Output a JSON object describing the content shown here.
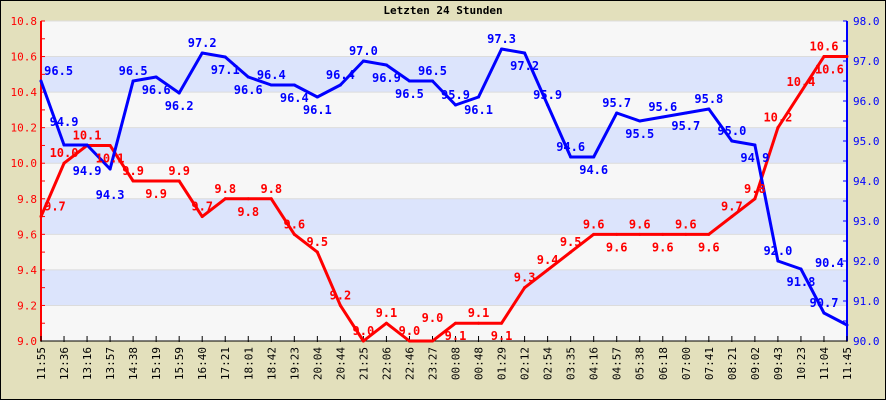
{
  "chart_data": {
    "type": "line",
    "title": "Letzten 24 Stunden",
    "categories": [
      "11:55",
      "12:36",
      "13:16",
      "13:57",
      "14:38",
      "15:19",
      "15:59",
      "16:40",
      "17:21",
      "18:01",
      "18:42",
      "19:23",
      "20:04",
      "20:44",
      "21:25",
      "22:06",
      "22:46",
      "23:27",
      "00:08",
      "00:48",
      "01:29",
      "02:12",
      "02:54",
      "03:35",
      "04:16",
      "04:57",
      "05:38",
      "06:18",
      "07:00",
      "07:41",
      "08:21",
      "09:02",
      "09:43",
      "10:23",
      "11:04",
      "11:45"
    ],
    "series": [
      {
        "axis": "left",
        "color": "#ff0000",
        "values": [
          9.7,
          10.0,
          10.1,
          10.1,
          9.9,
          9.9,
          9.9,
          9.7,
          9.8,
          9.8,
          9.8,
          9.6,
          9.5,
          9.2,
          9.0,
          9.1,
          9.0,
          9.0,
          9.1,
          9.1,
          9.1,
          9.3,
          9.4,
          9.5,
          9.6,
          9.6,
          9.6,
          9.6,
          9.6,
          9.6,
          9.7,
          9.8,
          10.2,
          10.4,
          10.6,
          10.6
        ]
      },
      {
        "axis": "right",
        "color": "#0000ff",
        "values": [
          96.5,
          94.9,
          94.9,
          94.3,
          96.5,
          96.6,
          96.2,
          97.2,
          97.1,
          96.6,
          96.4,
          96.4,
          96.1,
          96.4,
          97.0,
          96.9,
          96.5,
          96.5,
          95.9,
          96.1,
          97.3,
          97.2,
          95.9,
          94.6,
          94.6,
          95.7,
          95.5,
          95.6,
          95.7,
          95.8,
          95.0,
          94.9,
          92.0,
          91.8,
          90.7,
          90.4
        ]
      }
    ],
    "yleft": {
      "lim": [
        9.0,
        10.8
      ],
      "ticks": [
        "9.0",
        "9.2",
        "9.4",
        "9.6",
        "9.8",
        "10.0",
        "10.2",
        "10.4",
        "10.6",
        "10.8"
      ],
      "color": "#ff0000"
    },
    "yright": {
      "lim": [
        90.0,
        98.0
      ],
      "ticks": [
        "90.0",
        "91.0",
        "92.0",
        "93.0",
        "94.0",
        "95.0",
        "96.0",
        "97.0",
        "98.0"
      ],
      "color": "#0000ff"
    },
    "grid": true,
    "band_color": "#dce4fc",
    "background": "#f7f7f7",
    "frame_color": "#e3e0bc"
  }
}
